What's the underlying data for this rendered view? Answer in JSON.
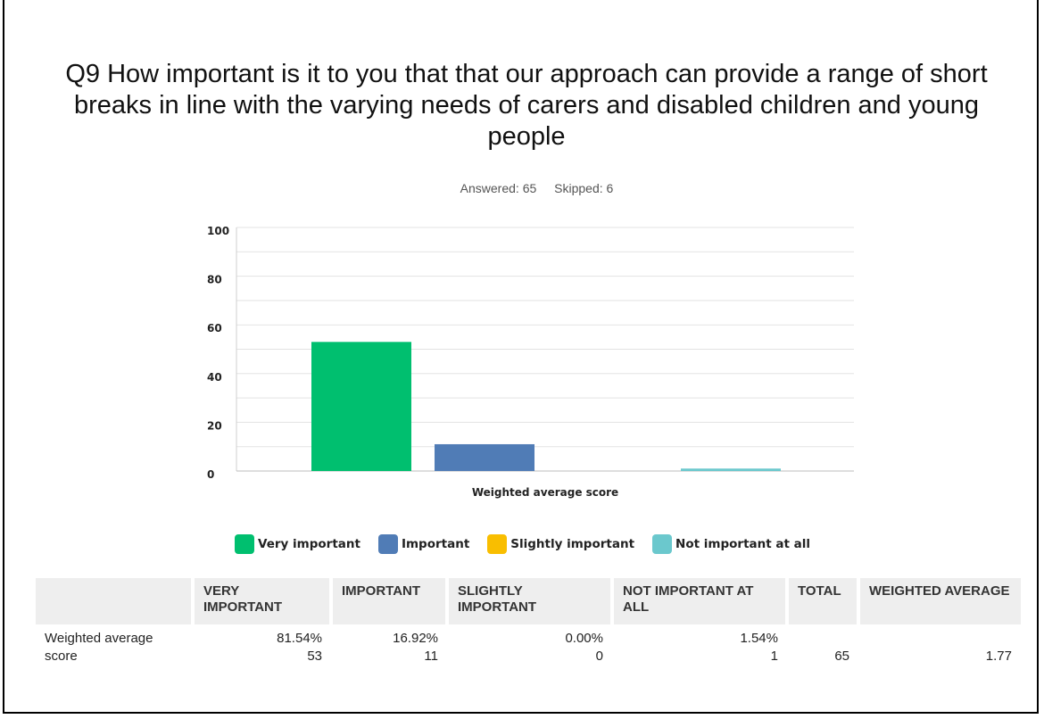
{
  "title": "Q9 How important is it to you that that our approach can provide a range of short breaks in line with the varying needs of carers and disabled children and young people",
  "meta": {
    "answered": "Answered: 65",
    "skipped": "Skipped: 6"
  },
  "chart_data": {
    "type": "bar",
    "categories": [
      "Weighted average score"
    ],
    "series": [
      {
        "name": "Very important",
        "values": [
          53
        ],
        "color": "#00bf6f"
      },
      {
        "name": "Important",
        "values": [
          11
        ],
        "color": "#507cb6"
      },
      {
        "name": "Slightly important",
        "values": [
          0
        ],
        "color": "#f9be00"
      },
      {
        "name": "Not important at all",
        "values": [
          1
        ],
        "color": "#6bc8cd"
      }
    ],
    "xlabel": "Weighted average score",
    "ylim": [
      0,
      100
    ],
    "yticks": [
      "0",
      "20",
      "40",
      "60",
      "80",
      "100"
    ],
    "grid": true,
    "legend_position": "bottom"
  },
  "table": {
    "headers": [
      "",
      "VERY IMPORTANT",
      "IMPORTANT",
      "SLIGHTLY IMPORTANT",
      "NOT IMPORTANT AT ALL",
      "TOTAL",
      "WEIGHTED AVERAGE"
    ],
    "row": {
      "label": "Weighted average score",
      "percents": [
        "81.54%",
        "16.92%",
        "0.00%",
        "1.54%"
      ],
      "counts": [
        "53",
        "11",
        "0",
        "1"
      ],
      "total": "65",
      "weighted_average": "1.77"
    }
  }
}
